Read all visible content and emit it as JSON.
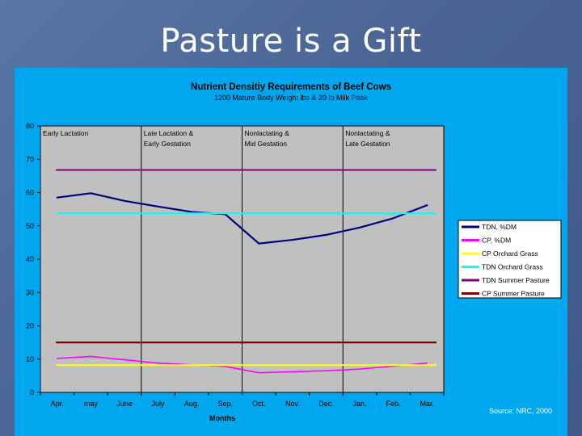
{
  "slide": {
    "title": "Pasture is a Gift",
    "source": "Source: NRC, 2000"
  },
  "colors": {
    "background": "#4a6594",
    "panel": "#00a6ee",
    "plot_area": "#c0c0c0"
  },
  "chart_data": {
    "type": "line",
    "title": "Nutrient Densitiy Requirements of Beef Cows",
    "subtitle": "1200 Mature Body Weight lbs & 20 lb Milk Peak",
    "xlabel": "Months",
    "ylabel": "",
    "ylim": [
      0,
      80
    ],
    "yticks": [
      0,
      10,
      20,
      30,
      40,
      50,
      60,
      70,
      80
    ],
    "categories": [
      "Apr.",
      "may",
      "June",
      "July",
      "Aug.",
      "Sep.",
      "Oct.",
      "Nov.",
      "Dec.",
      "Jan.",
      "Feb.",
      "Mar."
    ],
    "phases": [
      {
        "line1": "Early Lactation",
        "line2": "",
        "start_index": 0
      },
      {
        "line1": "Late Lactation &",
        "line2": "Early Gestation",
        "start_index": 2.5
      },
      {
        "line1": "Nonlactating &",
        "line2": "Mid Gestation",
        "start_index": 5.5
      },
      {
        "line1": "Nonlactating &",
        "line2": "Late Gestation",
        "start_index": 8.5
      }
    ],
    "series": [
      {
        "name": "TDN, %DM",
        "color": "#000080",
        "width": 2.2,
        "values": [
          58.5,
          59.8,
          57.5,
          55.8,
          54.2,
          53.5,
          44.7,
          45.8,
          47.3,
          49.5,
          52.3,
          56.2
        ]
      },
      {
        "name": "CP, %DM",
        "color": "#ff00ff",
        "width": 1.6,
        "values": [
          10.2,
          10.8,
          9.8,
          8.8,
          8.3,
          7.8,
          5.9,
          6.2,
          6.5,
          7.0,
          7.9,
          8.8
        ]
      },
      {
        "name": "CP Orchard Grass",
        "color": "#ffff00",
        "width": 2.2,
        "values": [
          8.2,
          8.2,
          8.2,
          8.2,
          8.2,
          8.2,
          8.2,
          8.2,
          8.2,
          8.2,
          8.2,
          8.2
        ]
      },
      {
        "name": "TDN Orchard Grass",
        "color": "#00ffff",
        "width": 2.0,
        "values": [
          53.8,
          53.8,
          53.8,
          53.8,
          53.8,
          53.8,
          53.8,
          53.8,
          53.8,
          53.8,
          53.8,
          53.8
        ]
      },
      {
        "name": "TDN Summer Pasture",
        "color": "#800080",
        "width": 2.0,
        "values": [
          66.8,
          66.8,
          66.8,
          66.8,
          66.8,
          66.8,
          66.8,
          66.8,
          66.8,
          66.8,
          66.8,
          66.8
        ]
      },
      {
        "name": "CP Summer Pasture",
        "color": "#800000",
        "width": 2.2,
        "values": [
          15.0,
          15.0,
          15.0,
          15.0,
          15.0,
          15.0,
          15.0,
          15.0,
          15.0,
          15.0,
          15.0,
          15.0
        ]
      }
    ],
    "legend": "right"
  }
}
